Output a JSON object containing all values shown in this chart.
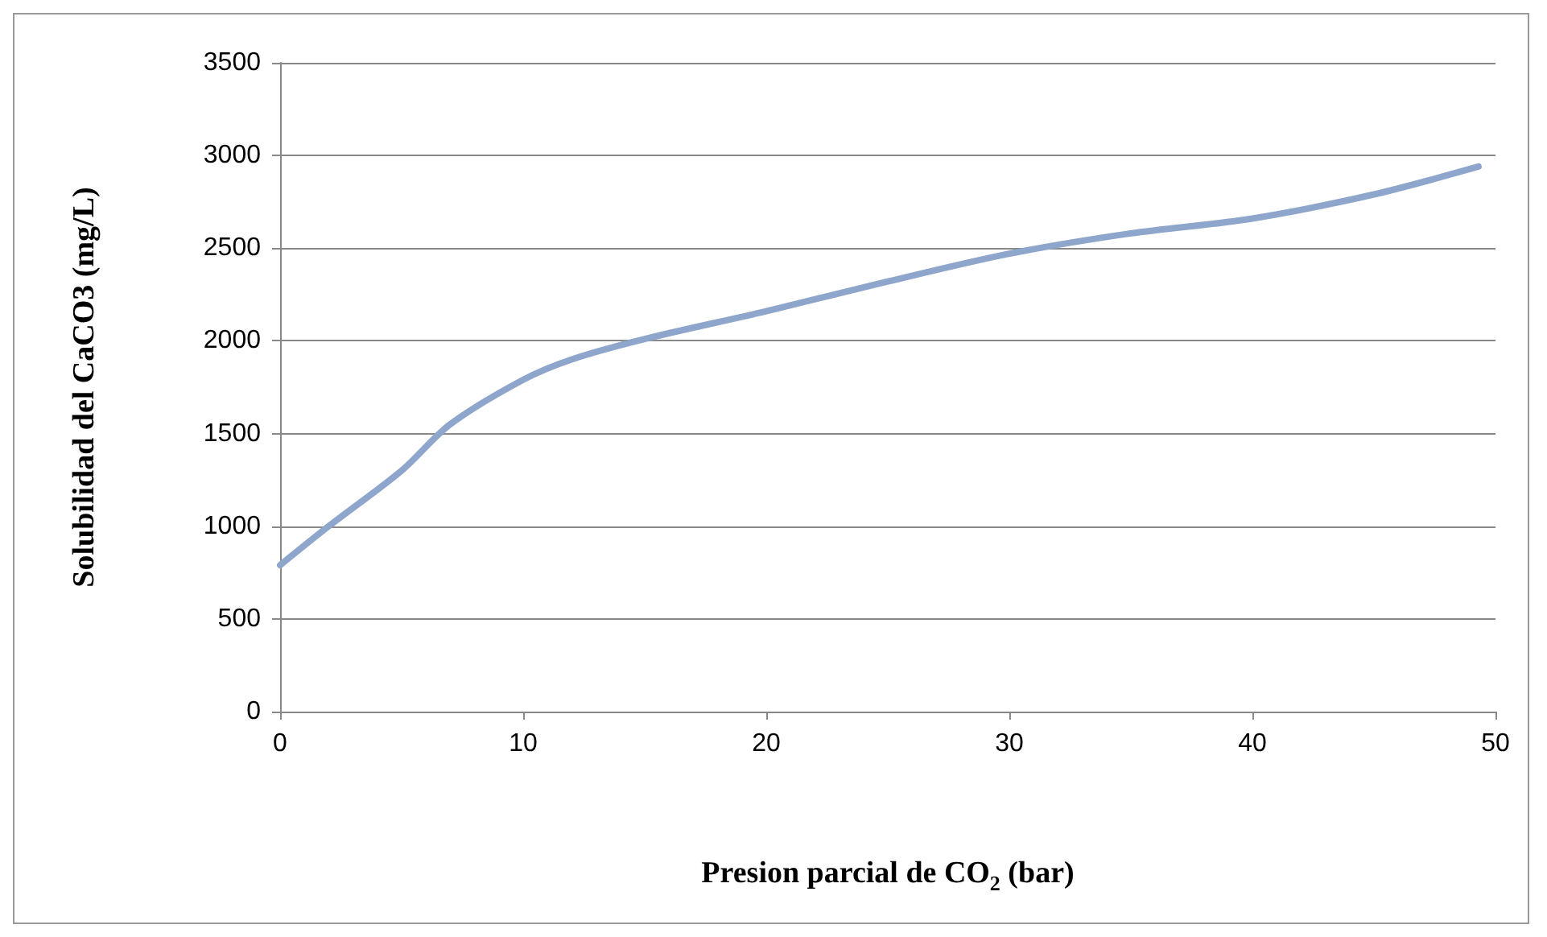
{
  "chart_data": {
    "type": "line",
    "xlabel": "Presion parcial de CO$_{2}$ (bar)",
    "ylabel": "Solubilidad del CaCO3 (mg/L)",
    "x": [
      0,
      2,
      5,
      7,
      10,
      12,
      15,
      20,
      25,
      30,
      35,
      40,
      45,
      49.3
    ],
    "series": [
      {
        "color": "#8ea5cc",
        "values": [
          790,
          1000,
          1300,
          1550,
          1790,
          1900,
          2010,
          2160,
          2320,
          2470,
          2580,
          2660,
          2790,
          2940
        ]
      }
    ],
    "xlim": [
      0,
      50
    ],
    "xticks": [
      0,
      10,
      20,
      30,
      40,
      50
    ],
    "ylim": [
      0,
      3500
    ],
    "yticks": [
      0,
      500,
      1000,
      1500,
      2000,
      2500,
      3000,
      3500
    ],
    "grid": "y",
    "marker": "none",
    "line_style": "solid"
  }
}
